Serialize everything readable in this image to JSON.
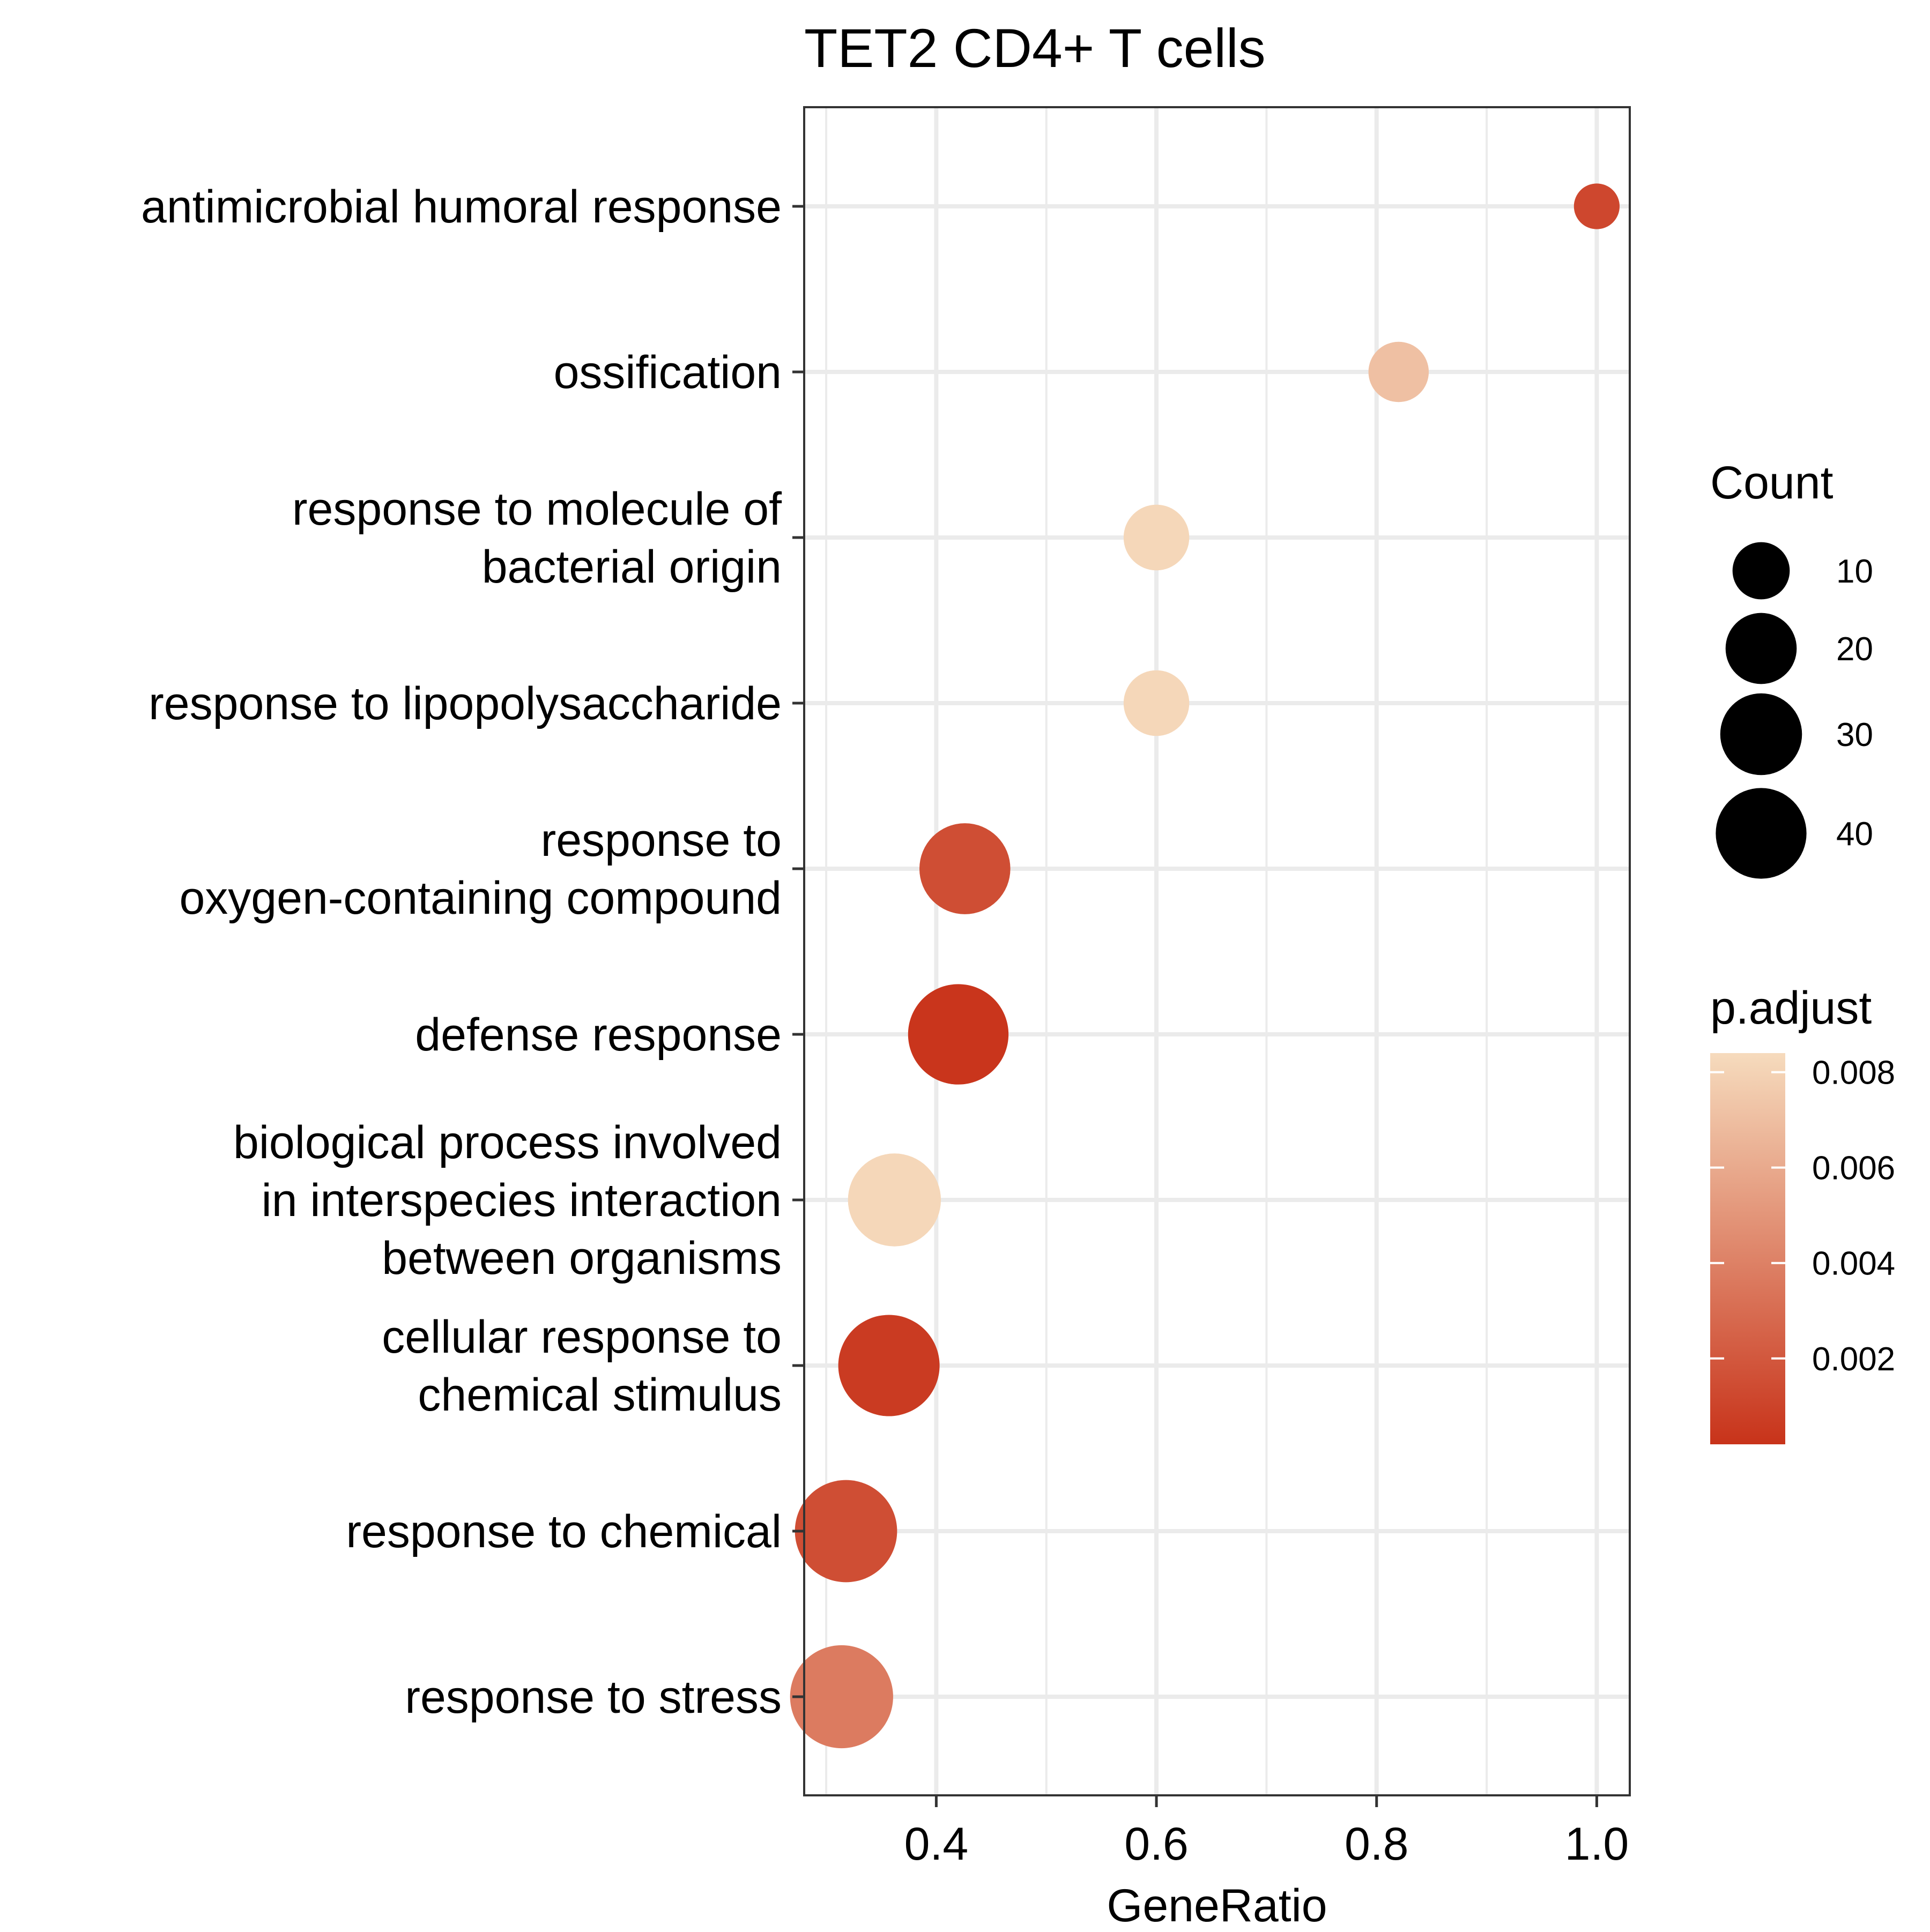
{
  "chart_data": {
    "type": "scatter",
    "title": "TET2 CD4+ T cells",
    "xlabel": "GeneRatio",
    "ylabel": "",
    "xlim": [
      0.28,
      1.03
    ],
    "x_ticks": [
      0.4,
      0.6,
      0.8,
      1.0
    ],
    "x_tick_labels": [
      "0.4",
      "0.6",
      "0.8",
      "1.0"
    ],
    "x_minor_ticks": [
      0.3,
      0.5,
      0.7,
      0.9
    ],
    "grid": true,
    "legend_position": "right",
    "size_legend": {
      "title": "Count",
      "entries": [
        {
          "label": "10",
          "value": 10
        },
        {
          "label": "20",
          "value": 20
        },
        {
          "label": "30",
          "value": 30
        },
        {
          "label": "40",
          "value": 40
        }
      ]
    },
    "color_legend": {
      "title": "p.adjust",
      "range": [
        0.0002,
        0.0084
      ],
      "ticks": [
        {
          "label": "0.008",
          "value": 0.008
        },
        {
          "label": "0.006",
          "value": 0.006
        },
        {
          "label": "0.004",
          "value": 0.004
        },
        {
          "label": "0.002",
          "value": 0.002
        }
      ],
      "low_color": "#c8331a",
      "high_color": "#f6dbbd"
    },
    "points": [
      {
        "term": [
          "antimicrobial humoral response"
        ],
        "gene_ratio": 1.0,
        "count": 3,
        "p_adjust": 0.0012
      },
      {
        "term": [
          "ossification"
        ],
        "gene_ratio": 0.82,
        "count": 9,
        "p_adjust": 0.0071
      },
      {
        "term": [
          "response to molecule of",
          "bacterial origin"
        ],
        "gene_ratio": 0.6,
        "count": 12,
        "p_adjust": 0.0082
      },
      {
        "term": [
          "response to lipopolysaccharide"
        ],
        "gene_ratio": 0.6,
        "count": 12,
        "p_adjust": 0.0082
      },
      {
        "term": [
          "response to",
          "oxygen-containing compound"
        ],
        "gene_ratio": 0.426,
        "count": 32,
        "p_adjust": 0.0015
      },
      {
        "term": [
          "defense response"
        ],
        "gene_ratio": 0.42,
        "count": 42,
        "p_adjust": 0.0003
      },
      {
        "term": [
          "biological process involved",
          "in interspecies interaction",
          "between organisms"
        ],
        "gene_ratio": 0.362,
        "count": 34,
        "p_adjust": 0.0082
      },
      {
        "term": [
          "cellular response to",
          "chemical stimulus"
        ],
        "gene_ratio": 0.357,
        "count": 43,
        "p_adjust": 0.0006
      },
      {
        "term": [
          "response to chemical"
        ],
        "gene_ratio": 0.318,
        "count": 44,
        "p_adjust": 0.0015
      },
      {
        "term": [
          "response to stress"
        ],
        "gene_ratio": 0.314,
        "count": 45,
        "p_adjust": 0.0037
      }
    ]
  }
}
